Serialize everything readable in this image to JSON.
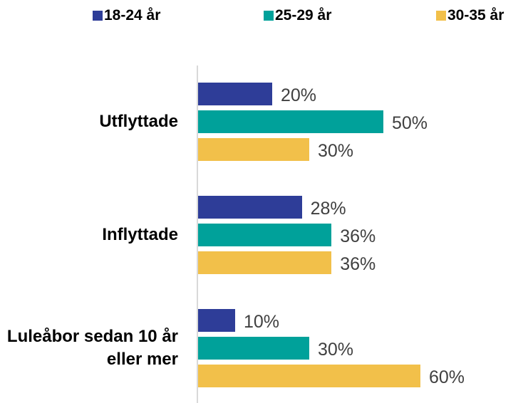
{
  "chart_data": {
    "type": "barh",
    "categories": [
      "Utflyttade",
      "Inflyttade",
      "Luleåbor sedan 10 år eller mer"
    ],
    "series": [
      {
        "name": "18-24 år",
        "color": "#2e3d98",
        "values": [
          20,
          28,
          10
        ],
        "value_labels": [
          "20%",
          "28%",
          "10%"
        ]
      },
      {
        "name": "25-29 år",
        "color": "#00a19a",
        "values": [
          50,
          36,
          30
        ],
        "value_labels": [
          "50%",
          "36%",
          "30%"
        ]
      },
      {
        "name": "30-35 år",
        "color": "#f2c04a",
        "values": [
          30,
          36,
          60
        ],
        "value_labels": [
          "30%",
          "36%",
          "60%"
        ]
      }
    ],
    "legend": "top"
  }
}
